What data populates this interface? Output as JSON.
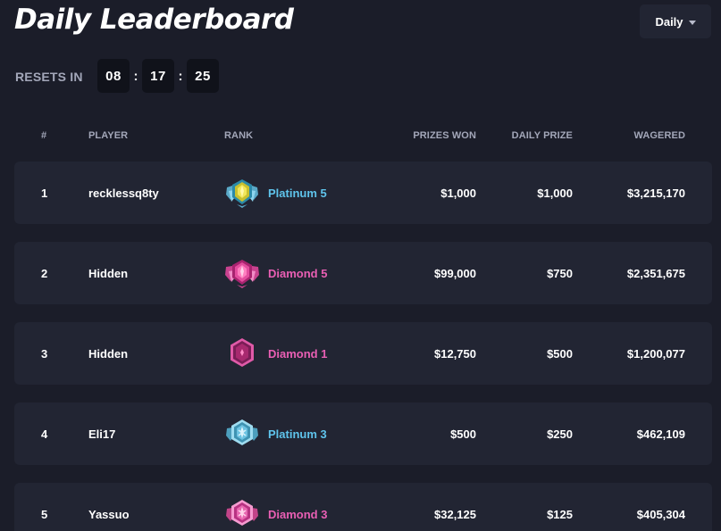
{
  "header": {
    "title": "Daily Leaderboard",
    "period": "Daily"
  },
  "reset": {
    "label": "RESETS IN",
    "hours": "08",
    "minutes": "17",
    "seconds": "25",
    "separator": ":"
  },
  "columns": {
    "num": "#",
    "player": "PLAYER",
    "rank": "RANK",
    "prizes_won": "PRIZES WON",
    "daily_prize": "DAILY PRIZE",
    "wagered": "WAGERED"
  },
  "rows": [
    {
      "position": "1",
      "player": "recklessq8ty",
      "rank": "Platinum 5",
      "prizes_won": "$1,000",
      "daily_prize": "$1,000",
      "wagered": "$3,215,170"
    },
    {
      "position": "2",
      "player": "Hidden",
      "rank": "Diamond 5",
      "prizes_won": "$99,000",
      "daily_prize": "$750",
      "wagered": "$2,351,675"
    },
    {
      "position": "3",
      "player": "Hidden",
      "rank": "Diamond 1",
      "prizes_won": "$12,750",
      "daily_prize": "$500",
      "wagered": "$1,200,077"
    },
    {
      "position": "4",
      "player": "Eli17",
      "rank": "Platinum 3",
      "prizes_won": "$500",
      "daily_prize": "$250",
      "wagered": "$462,109"
    },
    {
      "position": "5",
      "player": "Yassuo",
      "rank": "Diamond 3",
      "prizes_won": "$32,125",
      "daily_prize": "$125",
      "wagered": "$405,304"
    }
  ],
  "colors": {
    "background": "#1b1d29",
    "row": "#222533",
    "platinum": "#5fc4ec",
    "diamond": "#e95fb4",
    "muted": "#a3a7b9"
  },
  "icons": {
    "platinum_5": "platinum-5-rank-badge-icon",
    "diamond_5": "diamond-5-rank-badge-icon",
    "diamond_1": "diamond-1-rank-badge-icon",
    "platinum_3": "platinum-3-rank-badge-icon",
    "diamond_3": "diamond-3-rank-badge-icon",
    "caret": "chevron-down-icon"
  }
}
